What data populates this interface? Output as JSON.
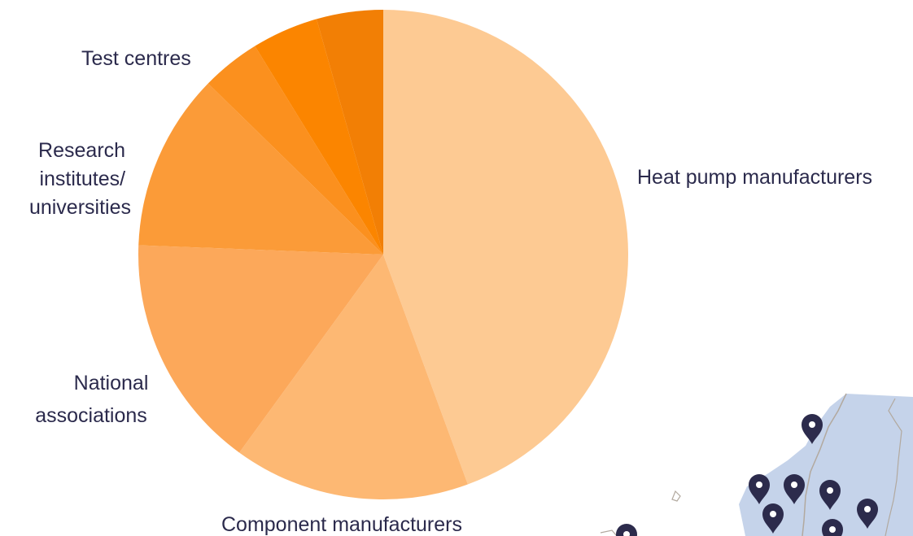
{
  "chart_data": {
    "type": "pie",
    "title": "",
    "slices": [
      {
        "label": "Heat pump manufacturers",
        "value": 45.5,
        "color": "#fdca93"
      },
      {
        "label": "Component manufacturers",
        "value": 16.0,
        "color": "#fdb873"
      },
      {
        "label": "National associations",
        "value": 16.0,
        "color": "#fca85a"
      },
      {
        "label": "Research institutes/ universities",
        "value": 12.0,
        "color": "#fb9b38"
      },
      {
        "label": "Test centres",
        "value": 4.0,
        "color": "#fb901e"
      },
      {
        "label": "",
        "value": 4.5,
        "color": "#fb8500"
      },
      {
        "label": "",
        "value": 4.5,
        "color": "#f27f05"
      }
    ],
    "start_angle_deg": 0,
    "direction": "clockwise"
  },
  "map": {
    "land_color": "#c5d3ea",
    "marker_color": "#2c2b4c",
    "marker_icon": "map-pin-icon"
  }
}
